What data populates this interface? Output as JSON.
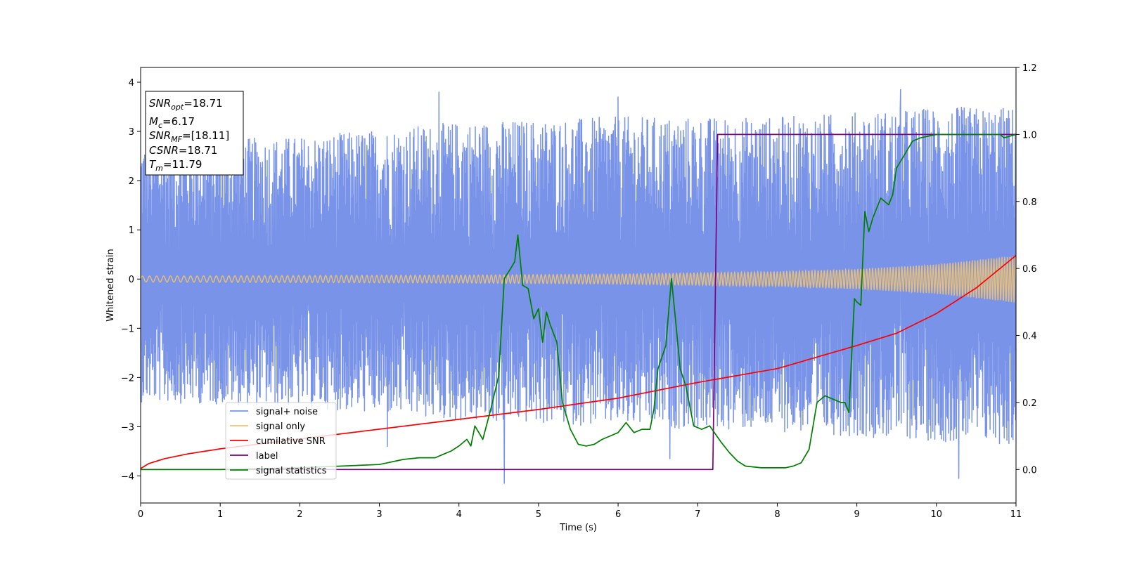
{
  "chart_data": {
    "type": "line",
    "title": "",
    "xlabel": "Time (s)",
    "ylabel": "Whitened strain",
    "y2label": "",
    "xlim": [
      0,
      11
    ],
    "ylim": [
      -4.55,
      4.3
    ],
    "y2lim": [
      -0.1,
      1.2
    ],
    "x_ticks": [
      "0",
      "1",
      "2",
      "3",
      "4",
      "5",
      "6",
      "7",
      "8",
      "9",
      "10",
      "11"
    ],
    "y_ticks": [
      "−4",
      "−3",
      "−2",
      "−1",
      "0",
      "1",
      "2",
      "3",
      "4"
    ],
    "y2_ticks": [
      "0.0",
      "0.2",
      "0.4",
      "0.6",
      "0.8",
      "1.0",
      "1.2"
    ],
    "grid": false,
    "legend_position": "lower-left",
    "textbox": [
      {
        "sym": "SNR",
        "sub": "opt",
        "value": "=18.71"
      },
      {
        "sym": "M",
        "sub": "c",
        "value": "=6.17"
      },
      {
        "sym": "SNR",
        "sub": "MF",
        "value": "=[18.11]"
      },
      {
        "sym": "CSNR",
        "sub": "",
        "value": "=18.71"
      },
      {
        "sym": "T",
        "sub": "m",
        "value": "=11.79"
      }
    ],
    "series": [
      {
        "name": "signal+ noise",
        "color": "#7893e8",
        "axis": "left",
        "envelope": {
          "x": [
            0,
            2,
            4,
            6,
            8,
            10,
            11
          ],
          "min": [
            -2.5,
            -2.6,
            -2.9,
            -3.0,
            -3.1,
            -3.3,
            -3.4
          ],
          "max": [
            2.8,
            2.9,
            3.2,
            3.3,
            3.3,
            3.5,
            3.5
          ]
        },
        "peaks": [
          [
            3.75,
            3.8
          ],
          [
            6.65,
            3.85
          ],
          [
            9.55,
            3.85
          ],
          [
            6.0,
            3.7
          ],
          [
            4.57,
            -4.15
          ],
          [
            10.28,
            -4.05
          ],
          [
            6.65,
            -3.65
          ],
          [
            3.1,
            -3.4
          ]
        ]
      },
      {
        "name": "signal only",
        "color": "#f5c46a",
        "axis": "left",
        "amplitude": {
          "x": [
            0,
            2,
            4,
            6,
            8,
            9,
            10,
            11
          ],
          "y": [
            0.06,
            0.07,
            0.08,
            0.1,
            0.15,
            0.2,
            0.3,
            0.48
          ]
        }
      },
      {
        "name": "cumilative SNR",
        "color": "#ff0000",
        "axis": "left",
        "x": [
          0,
          0.1,
          0.3,
          0.6,
          1,
          2,
          3,
          4,
          5,
          6,
          7,
          8,
          9,
          9.5,
          10,
          10.5,
          11
        ],
        "y": [
          -3.85,
          -3.75,
          -3.65,
          -3.55,
          -3.45,
          -3.25,
          -3.05,
          -2.85,
          -2.65,
          -2.42,
          -2.1,
          -1.82,
          -1.35,
          -1.1,
          -0.7,
          -0.18,
          0.48
        ]
      },
      {
        "name": "label",
        "color": "#800080",
        "axis": "right",
        "x": [
          0,
          7.19,
          7.25,
          11
        ],
        "y": [
          0,
          0,
          1,
          1
        ]
      },
      {
        "name": "signal statistics",
        "color": "#008000",
        "axis": "right",
        "x": [
          0,
          1,
          2,
          3,
          3.1,
          3.3,
          3.5,
          3.7,
          3.8,
          3.9,
          4.0,
          4.1,
          4.15,
          4.2,
          4.3,
          4.4,
          4.5,
          4.57,
          4.65,
          4.7,
          4.74,
          4.8,
          4.87,
          4.94,
          5.0,
          5.05,
          5.1,
          5.15,
          5.23,
          5.3,
          5.4,
          5.5,
          5.6,
          5.7,
          5.8,
          5.9,
          6.0,
          6.1,
          6.2,
          6.3,
          6.4,
          6.45,
          6.5,
          6.6,
          6.67,
          6.72,
          6.78,
          6.85,
          6.95,
          7.05,
          7.15,
          7.3,
          7.4,
          7.5,
          7.6,
          7.8,
          8.0,
          8.1,
          8.2,
          8.3,
          8.4,
          8.5,
          8.6,
          8.7,
          8.8,
          8.85,
          8.9,
          8.97,
          9.0,
          9.05,
          9.1,
          9.15,
          9.2,
          9.3,
          9.35,
          9.4,
          9.45,
          9.5,
          9.55,
          9.6,
          9.65,
          9.7,
          9.8,
          9.9,
          10.0,
          10.5,
          10.8,
          10.85,
          11
        ],
        "y": [
          0,
          0,
          0.005,
          0.015,
          0.02,
          0.03,
          0.035,
          0.035,
          0.045,
          0.055,
          0.07,
          0.09,
          0.07,
          0.13,
          0.09,
          0.18,
          0.28,
          0.57,
          0.6,
          0.62,
          0.7,
          0.55,
          0.54,
          0.45,
          0.48,
          0.38,
          0.47,
          0.43,
          0.38,
          0.2,
          0.12,
          0.075,
          0.07,
          0.075,
          0.09,
          0.1,
          0.11,
          0.14,
          0.11,
          0.12,
          0.12,
          0.18,
          0.3,
          0.37,
          0.57,
          0.45,
          0.3,
          0.25,
          0.13,
          0.12,
          0.13,
          0.08,
          0.05,
          0.025,
          0.01,
          0.005,
          0.005,
          0.005,
          0.01,
          0.02,
          0.06,
          0.2,
          0.22,
          0.21,
          0.2,
          0.2,
          0.17,
          0.51,
          0.5,
          0.49,
          0.77,
          0.71,
          0.75,
          0.81,
          0.8,
          0.79,
          0.82,
          0.9,
          0.92,
          0.94,
          0.96,
          0.98,
          0.99,
          0.995,
          1.0,
          1.0,
          1.0,
          0.99,
          1.0
        ]
      }
    ]
  }
}
